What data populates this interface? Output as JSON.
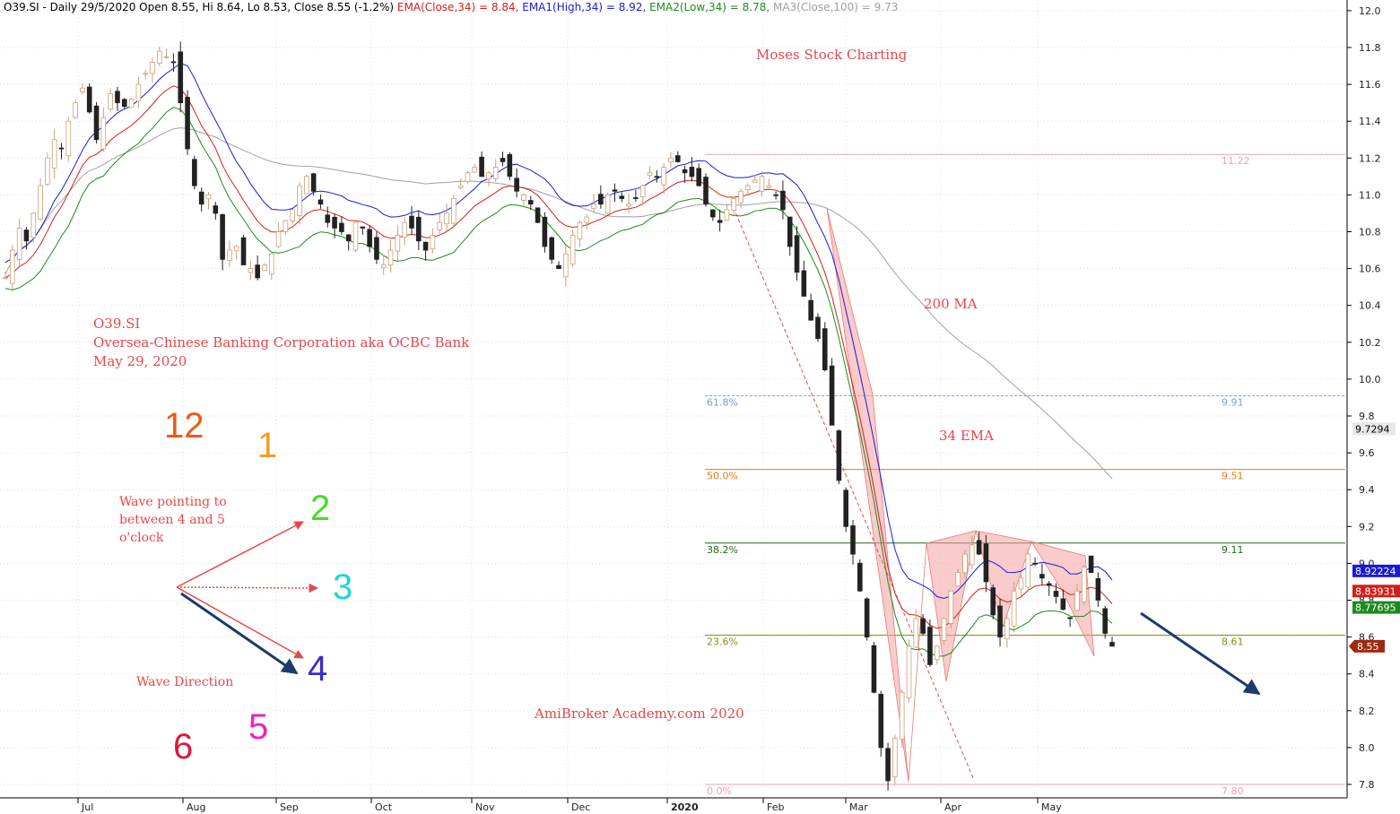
{
  "header": {
    "parts": [
      {
        "text": "O39.SI - Daily 29/5/2020 Open 8.55, Hi 8.64, Lo 8.53, Close 8.55 (-1.2%) ",
        "color": "#000000"
      },
      {
        "text": "EMA(Close,34) = 8.84, ",
        "color": "#d0201c"
      },
      {
        "text": "EMA1(High,34) = 8.92, ",
        "color": "#1a1ad8"
      },
      {
        "text": "EMA2(Low,34) = 8.78, ",
        "color": "#1e8a1e"
      },
      {
        "text": "MA3(Close,100) = 9.73",
        "color": "#a0a0a0"
      }
    ]
  },
  "annotations": {
    "watermark_top": "Moses Stock Charting",
    "ticker": "O39.SI",
    "company": "Oversea-Chinese Banking Corporation aka OCBC Bank",
    "date": "May 29, 2020",
    "ma200": "200 MA",
    "ema34": "34 EMA",
    "wave_pointing": [
      "Wave pointing to",
      "between 4 and 5",
      "o'clock"
    ],
    "wave_direction": "Wave Direction",
    "footer_credit": "AmiBroker Academy.com 2020"
  },
  "clock": [
    {
      "label": "12",
      "color": "#ee5a1c"
    },
    {
      "label": "1",
      "color": "#f0a020"
    },
    {
      "label": "2",
      "color": "#44dd22"
    },
    {
      "label": "3",
      "color": "#22d4d4"
    },
    {
      "label": "4",
      "color": "#3a2ad0"
    },
    {
      "label": "5",
      "color": "#ee22bb"
    },
    {
      "label": "6",
      "color": "#dd1a3a"
    }
  ],
  "fibonacci": [
    {
      "pct": "61.8%",
      "value": "9.91",
      "price": 9.91,
      "color": "#6fa0d8"
    },
    {
      "pct": "50.0%",
      "value": "9.51",
      "price": 9.51,
      "color": "#e07a1a"
    },
    {
      "pct": "38.2%",
      "value": "9.11",
      "price": 9.11,
      "color": "#1e6a1e"
    },
    {
      "pct": "23.6%",
      "value": "8.61",
      "price": 8.61,
      "color": "#8a8a1a"
    },
    {
      "pct": "0.0%",
      "value": "7.80",
      "price": 7.8,
      "color": "#f0a0b0"
    },
    {
      "pct": "",
      "value": "11.22",
      "price": 11.22,
      "color": "#f0a0b0"
    }
  ],
  "price_badges": [
    {
      "text": "9.7294",
      "price": 9.73,
      "bg": "#e8e8e8",
      "fg": "#000000"
    },
    {
      "text": "8.92224",
      "price": 8.92,
      "bg": "#1a1ad8",
      "fg": "#ffffff"
    },
    {
      "text": "8.83931",
      "price": 8.84,
      "bg": "#d0201c",
      "fg": "#ffffff"
    },
    {
      "text": "8.77695",
      "price": 8.78,
      "bg": "#1e8a1e",
      "fg": "#ffffff"
    },
    {
      "text": "8.55",
      "price": 8.55,
      "bg": "#a02a10",
      "fg": "#ffffff"
    }
  ],
  "colors": {
    "up_candle": "#c8a078",
    "down_candle": "#222222",
    "ema_close": "#d0201c",
    "ema_high": "#1a1ad8",
    "ema_low": "#1e8a1e",
    "ma100": "#a0a0a0",
    "pattern_fill": "#f4a0a0",
    "trend_arrow": "#1e3a6a"
  },
  "chart_data": {
    "type": "candlestick",
    "ylim": [
      7.7,
      12.05
    ],
    "y_ticks": [
      "7.8",
      "8.0",
      "8.2",
      "8.4",
      "8.6",
      "8.8",
      "9.0",
      "9.2",
      "9.4",
      "9.6",
      "9.8",
      "10.0",
      "10.2",
      "10.4",
      "10.6",
      "10.8",
      "11.0",
      "11.2",
      "11.4",
      "11.6",
      "11.8",
      "12.0"
    ],
    "month_ticks": [
      {
        "label": "Jul",
        "bold": false
      },
      {
        "label": "Aug",
        "bold": false
      },
      {
        "label": "Sep",
        "bold": false
      },
      {
        "label": "Oct",
        "bold": false
      },
      {
        "label": "Nov",
        "bold": false
      },
      {
        "label": "Dec",
        "bold": false
      },
      {
        "label": "2020",
        "bold": true
      },
      {
        "label": "Feb",
        "bold": false
      },
      {
        "label": "Mar",
        "bold": false
      },
      {
        "label": "Apr",
        "bold": false
      },
      {
        "label": "May",
        "bold": false
      }
    ],
    "close_series": [
      10.55,
      10.7,
      10.82,
      10.75,
      10.9,
      11.05,
      11.2,
      11.3,
      11.25,
      11.4,
      11.5,
      11.58,
      11.45,
      11.3,
      11.42,
      11.55,
      11.5,
      11.48,
      11.52,
      11.6,
      11.66,
      11.72,
      11.78,
      11.75,
      11.72,
      11.5,
      11.25,
      11.05,
      10.95,
      11.0,
      10.9,
      10.65,
      10.7,
      10.72,
      10.62,
      10.6,
      10.55,
      10.62,
      10.68,
      10.8,
      10.86,
      10.92,
      11.05,
      11.1,
      11.02,
      10.95,
      10.85,
      10.82,
      10.8,
      10.75,
      10.85,
      10.82,
      10.72,
      10.65,
      10.62,
      10.7,
      10.78,
      10.85,
      10.82,
      10.75,
      10.7,
      10.78,
      10.85,
      10.9,
      10.98,
      11.05,
      11.12,
      11.15,
      11.1,
      11.12,
      11.15,
      11.18,
      11.1,
      11.02,
      11.0,
      10.95,
      10.85,
      10.72,
      10.65,
      10.6,
      10.68,
      10.78,
      10.85,
      10.88,
      10.95,
      10.95,
      11.0,
      11.02,
      10.98,
      10.95,
      10.98,
      11.05,
      11.12,
      11.1,
      11.15,
      11.2,
      11.18,
      11.12,
      11.1,
      11.05,
      10.95,
      10.88,
      10.85,
      10.92,
      10.98,
      11.02,
      11.05,
      11.08,
      11.1,
      11.05,
      11.0,
      10.92,
      10.72,
      10.58,
      10.45,
      10.32,
      10.22,
      10.05,
      9.75,
      9.45,
      9.2,
      9.05,
      8.85,
      8.6,
      8.3,
      8.0,
      7.82,
      8.05,
      8.3,
      8.55,
      8.7,
      8.62,
      8.45,
      8.55,
      8.7,
      8.85,
      8.95,
      9.05,
      9.1,
      9.05,
      8.9,
      8.72,
      8.6,
      8.7,
      8.85,
      8.92,
      9.05,
      9.0,
      8.92,
      8.88,
      8.82,
      8.75,
      8.7,
      8.85,
      8.98,
      8.95,
      8.8,
      8.62,
      8.55
    ],
    "ma_series": {
      "ema_close_34": "EMA(Close,34)",
      "ema_high_34": "EMA1(High,34)",
      "ema_low_34": "EMA2(Low,34)",
      "ma_close_100": "MA3(Close,100)"
    },
    "last_values": {
      "open": 8.55,
      "high": 8.64,
      "low": 8.53,
      "close": 8.55,
      "change_pct": -1.2,
      "ema_close": 8.84,
      "ema_high": 8.92,
      "ema_low": 8.78,
      "ma100": 9.73
    }
  }
}
